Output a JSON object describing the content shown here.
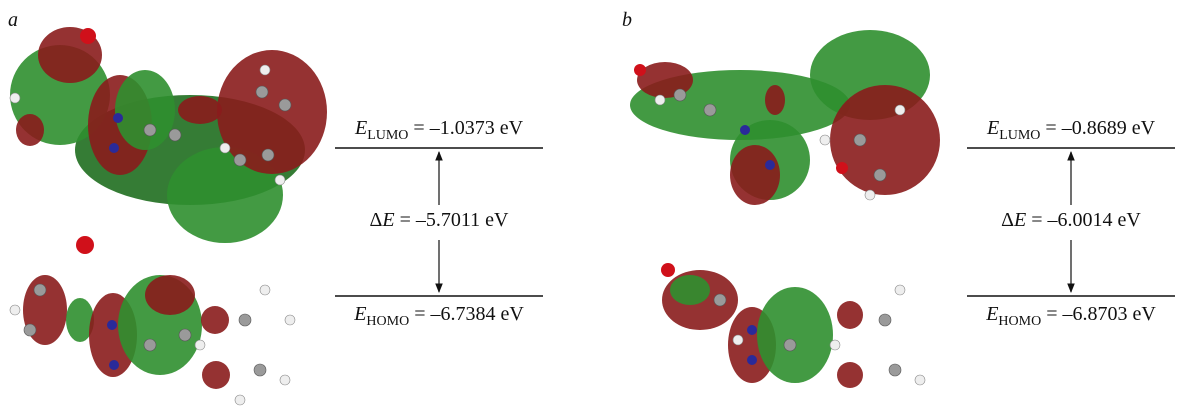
{
  "panels": [
    {
      "label": "a",
      "lumo": {
        "symbol": "E",
        "subscript": "LUMO",
        "value": " = –1.0373 eV"
      },
      "gap": {
        "delta": "Δ",
        "symbol": "E",
        "value": " = –5.7011 eV"
      },
      "homo": {
        "symbol": "E",
        "subscript": "HOMO",
        "value": " = –6.7384 eV"
      }
    },
    {
      "label": "b",
      "lumo": {
        "symbol": "E",
        "subscript": "LUMO",
        "value": " = –0.8689 eV"
      },
      "gap": {
        "delta": "Δ",
        "symbol": "E",
        "value": " = –6.0014 eV"
      },
      "homo": {
        "symbol": "E",
        "subscript": "HOMO",
        "value": " = –6.8703 eV"
      }
    }
  ]
}
